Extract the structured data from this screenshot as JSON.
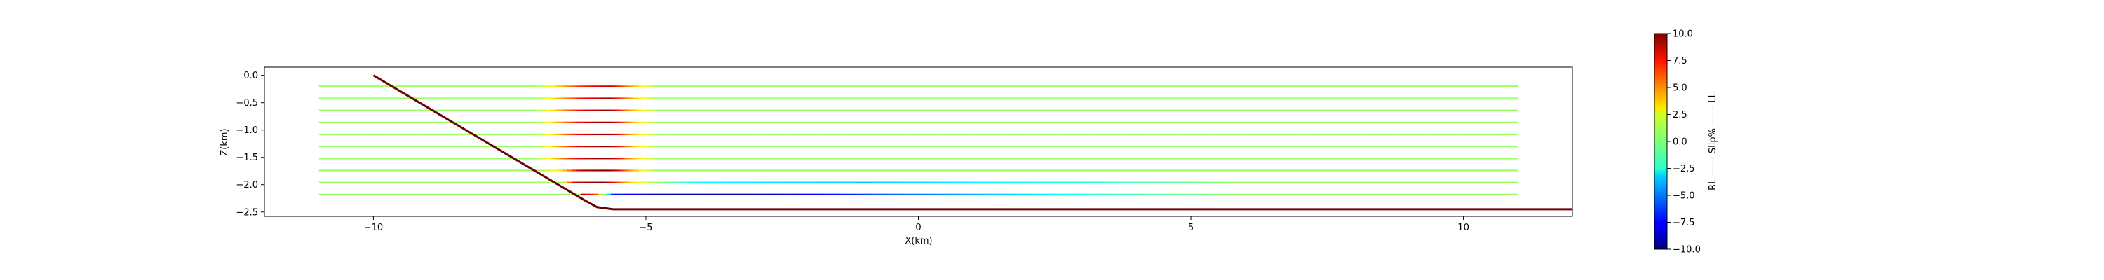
{
  "chart_data": {
    "type": "line",
    "title": "",
    "xlabel": "X(km)",
    "ylabel": "Z(km)",
    "xlim": [
      -12,
      12
    ],
    "ylim": [
      -2.58,
      0.15
    ],
    "xticks": [
      -10,
      -5,
      0,
      5,
      10
    ],
    "xtick_labels": [
      "−10",
      "−5",
      "0",
      "5",
      "10"
    ],
    "yticks": [
      0.0,
      -0.5,
      -1.0,
      -1.5,
      -2.0,
      -2.5
    ],
    "ytick_labels": [
      "0.0",
      "−0.5",
      "−1.0",
      "−1.5",
      "−2.0",
      "−2.5"
    ],
    "grid": false,
    "fault": {
      "color": "#6b0000",
      "points": [
        [
          -10,
          0
        ],
        [
          -6.1,
          -2.3
        ],
        [
          -5.9,
          -2.41
        ],
        [
          -5.6,
          -2.45
        ],
        [
          12,
          -2.45
        ]
      ]
    },
    "slip_lines": {
      "description_free": true,
      "x_start": -11,
      "x_end": 11,
      "depths": [
        -0.2,
        -0.42,
        -0.64,
        -0.86,
        -1.08,
        -1.3,
        -1.52,
        -1.74,
        -1.96,
        -2.18
      ],
      "base_value": 0.5,
      "profiles": [
        {
          "z": -0.2,
          "points": [
            [
              -7.0,
              0.5
            ],
            [
              -6.7,
              2.8
            ],
            [
              -6.2,
              6.5
            ],
            [
              -5.7,
              8.8
            ],
            [
              -5.2,
              3.5
            ],
            [
              -4.8,
              0.5
            ]
          ]
        },
        {
          "z": -0.42,
          "points": [
            [
              -7.0,
              0.5
            ],
            [
              -6.7,
              3.0
            ],
            [
              -6.2,
              7.0
            ],
            [
              -5.7,
              9.2
            ],
            [
              -5.2,
              3.5
            ],
            [
              -4.8,
              0.5
            ]
          ]
        },
        {
          "z": -0.64,
          "points": [
            [
              -7.0,
              0.5
            ],
            [
              -6.7,
              3.2
            ],
            [
              -6.2,
              7.5
            ],
            [
              -5.7,
              9.5
            ],
            [
              -5.2,
              3.5
            ],
            [
              -4.8,
              0.5
            ]
          ]
        },
        {
          "z": -0.86,
          "points": [
            [
              -7.0,
              0.5
            ],
            [
              -6.7,
              3.2
            ],
            [
              -6.2,
              7.8
            ],
            [
              -5.7,
              9.6
            ],
            [
              -5.2,
              3.5
            ],
            [
              -4.8,
              0.5
            ]
          ]
        },
        {
          "z": -1.08,
          "points": [
            [
              -7.0,
              0.5
            ],
            [
              -6.7,
              3.2
            ],
            [
              -6.2,
              8.0
            ],
            [
              -5.7,
              9.7
            ],
            [
              -5.2,
              3.5
            ],
            [
              -4.8,
              0.5
            ]
          ]
        },
        {
          "z": -1.3,
          "points": [
            [
              -7.0,
              0.5
            ],
            [
              -6.7,
              3.3
            ],
            [
              -6.2,
              8.2
            ],
            [
              -5.7,
              9.8
            ],
            [
              -5.2,
              3.5
            ],
            [
              -4.8,
              0.5
            ]
          ]
        },
        {
          "z": -1.52,
          "points": [
            [
              -7.0,
              0.5
            ],
            [
              -6.7,
              3.3
            ],
            [
              -6.2,
              8.4
            ],
            [
              -5.7,
              9.8
            ],
            [
              -5.2,
              3.5
            ],
            [
              -4.8,
              0.5
            ]
          ]
        },
        {
          "z": -1.74,
          "points": [
            [
              -7.0,
              0.5
            ],
            [
              -6.5,
              3.5
            ],
            [
              -6.2,
              8.5
            ],
            [
              -5.7,
              9.9
            ],
            [
              -5.2,
              3.5
            ],
            [
              -4.8,
              0.5
            ]
          ]
        },
        {
          "z": -1.96,
          "points": [
            [
              -6.5,
              2.5
            ],
            [
              -6.3,
              8.5
            ],
            [
              -5.8,
              9.9
            ],
            [
              -5.3,
              3.5
            ],
            [
              -4.8,
              0.5
            ],
            [
              -4.0,
              -2.5
            ],
            [
              -1.0,
              -3.5
            ],
            [
              3.0,
              -1.8
            ],
            [
              6.0,
              0.5
            ]
          ]
        },
        {
          "z": -2.18,
          "points": [
            [
              -6.2,
              9.5
            ],
            [
              -5.9,
              6.0
            ],
            [
              -5.6,
              -7.0
            ],
            [
              -4.5,
              -9.5
            ],
            [
              -2.5,
              -8.5
            ],
            [
              -0.5,
              -5.5
            ],
            [
              2.0,
              -3.0
            ],
            [
              4.0,
              -1.0
            ],
            [
              6.0,
              0.5
            ]
          ]
        }
      ]
    },
    "colorbar": {
      "label": "RL ------ Slip% ------ LL",
      "colormap": "jet",
      "range": [
        -10.0,
        10.0
      ],
      "ticks": [
        10.0,
        7.5,
        5.0,
        2.5,
        0.0,
        -2.5,
        -5.0,
        -7.5,
        -10.0
      ],
      "tick_labels": [
        "10.0",
        "7.5",
        "5.0",
        "2.5",
        "0.0",
        "−2.5",
        "−5.0",
        "−7.5",
        "−10.0"
      ]
    }
  }
}
